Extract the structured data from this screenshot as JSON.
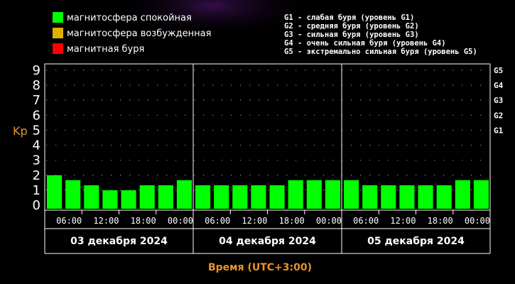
{
  "legend": {
    "items": [
      {
        "label": "магнитосфера спокойная",
        "color": "#00ff00"
      },
      {
        "label": "магнитосфера возбужденная",
        "color": "#e0b000"
      },
      {
        "label": "магнитная буря",
        "color": "#ff0000"
      }
    ],
    "storm_levels": [
      "G1 - слабая буря (уровень G1)",
      "G2 - средняя буря (уровень G2)",
      "G3 - сильная буря (уровень G3)",
      "G4 - очень сильная буря (уровень G4)",
      "G5 - экстремально сильная буря (уровень G5)"
    ]
  },
  "chart_data": {
    "type": "bar",
    "ylabel": "Kp",
    "xlabel": "Время (UTC+3:00)",
    "ylim": [
      0,
      9
    ],
    "yticks": [
      "0",
      "1",
      "2",
      "3",
      "4",
      "5",
      "6",
      "7",
      "8",
      "9"
    ],
    "g_ticks": [
      {
        "label": "G1",
        "kp": 5
      },
      {
        "label": "G2",
        "kp": 6
      },
      {
        "label": "G3",
        "kp": 7
      },
      {
        "label": "G4",
        "kp": 8
      },
      {
        "label": "G5",
        "kp": 9
      }
    ],
    "xticks": [
      "06:00",
      "12:00",
      "18:00",
      "00:00",
      "06:00",
      "12:00",
      "18:00",
      "00:00",
      "06:00",
      "12:00",
      "18:00",
      "00:00"
    ],
    "days": [
      "03 декабря 2024",
      "04 декабря 2024",
      "05 декабря 2024"
    ],
    "bar_color": "#00ff00",
    "grid": "dotted",
    "values": [
      2.0,
      1.67,
      1.33,
      1.0,
      1.0,
      1.33,
      1.33,
      1.67,
      1.33,
      1.33,
      1.33,
      1.33,
      1.33,
      1.67,
      1.67,
      1.67,
      1.67,
      1.33,
      1.33,
      1.33,
      1.33,
      1.33,
      1.67,
      1.67
    ]
  }
}
